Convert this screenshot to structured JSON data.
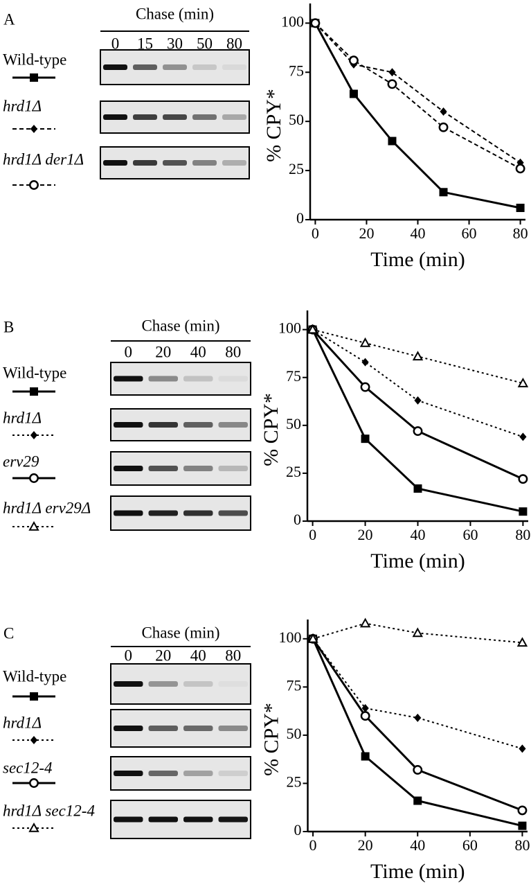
{
  "panels": [
    "A",
    "B",
    "C"
  ],
  "gel_header": [
    "Chase (min)",
    "Chase (min)",
    "Chase (min)"
  ],
  "chart_data": [
    {
      "type": "line",
      "xlabel": "Time (min)",
      "ylabel": "% CPY*",
      "x": [
        0,
        15,
        30,
        50,
        80
      ],
      "xlim": [
        -2,
        82
      ],
      "ylim": [
        0,
        110
      ],
      "xticks": [
        0,
        20,
        40,
        60,
        80
      ],
      "yticks": [
        0,
        25,
        50,
        75,
        100
      ],
      "series": [
        {
          "name": "Wild-type",
          "color": "#000000",
          "marker": "square",
          "line": "solid",
          "values": [
            100,
            64,
            40,
            14,
            6
          ]
        },
        {
          "name": "hrd1Δ",
          "color": "#000000",
          "marker": "diamond",
          "line": "dashed",
          "values": [
            100,
            79,
            75,
            55,
            29
          ]
        },
        {
          "name": "hrd1Δ der1Δ",
          "color": "#000000",
          "marker": "circle",
          "line": "dashed",
          "values": [
            100,
            81,
            69,
            47,
            26
          ]
        }
      ]
    },
    {
      "type": "line",
      "xlabel": "Time (min)",
      "ylabel": "% CPY*",
      "x": [
        0,
        20,
        40,
        80
      ],
      "xlim": [
        -2,
        82
      ],
      "ylim": [
        0,
        110
      ],
      "xticks": [
        0,
        20,
        40,
        60,
        80
      ],
      "yticks": [
        0,
        25,
        50,
        75,
        100
      ],
      "series": [
        {
          "name": "Wild-type",
          "color": "#000000",
          "marker": "square",
          "line": "solid",
          "values": [
            100,
            43,
            17,
            5
          ]
        },
        {
          "name": "hrd1Δ",
          "color": "#000000",
          "marker": "diamond",
          "line": "dotted",
          "values": [
            100,
            83,
            63,
            44
          ]
        },
        {
          "name": "erv29",
          "color": "#000000",
          "marker": "circle",
          "line": "solid",
          "values": [
            100,
            70,
            47,
            22
          ]
        },
        {
          "name": "hrd1Δ erv29Δ",
          "color": "#000000",
          "marker": "triangle",
          "line": "dotted",
          "values": [
            100,
            93,
            86,
            72
          ]
        }
      ]
    },
    {
      "type": "line",
      "xlabel": "Time (min)",
      "ylabel": "% CPY*",
      "x": [
        0,
        20,
        40,
        80
      ],
      "xlim": [
        -2,
        82
      ],
      "ylim": [
        0,
        110
      ],
      "xticks": [
        0,
        20,
        40,
        60,
        80
      ],
      "yticks": [
        0,
        25,
        50,
        75,
        100
      ],
      "series": [
        {
          "name": "Wild-type",
          "color": "#000000",
          "marker": "square",
          "line": "solid",
          "values": [
            100,
            39,
            16,
            3
          ]
        },
        {
          "name": "hrd1Δ",
          "color": "#000000",
          "marker": "diamond",
          "line": "dotted",
          "values": [
            100,
            64,
            59,
            43
          ]
        },
        {
          "name": "sec12-4",
          "color": "#000000",
          "marker": "circle",
          "line": "solid",
          "values": [
            100,
            60,
            32,
            11
          ]
        },
        {
          "name": "hrd1Δ sec12-4",
          "color": "#000000",
          "marker": "triangle",
          "line": "dotted",
          "values": [
            100,
            108,
            103,
            98
          ]
        }
      ]
    }
  ]
}
